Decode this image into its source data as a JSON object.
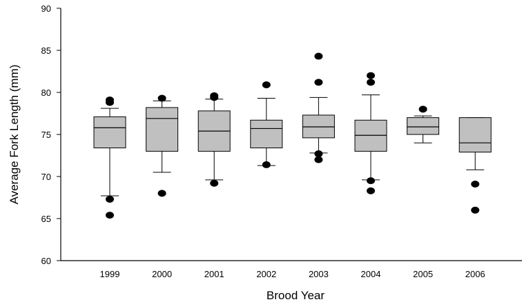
{
  "chart_data": {
    "type": "box",
    "xlabel": "Brood Year",
    "ylabel": "Average Fork Length (mm)",
    "ylim": [
      60,
      90
    ],
    "yticks": [
      60,
      65,
      70,
      75,
      80,
      85,
      90
    ],
    "grid": false,
    "colors": {
      "box_fill": "#c0c0c0",
      "line": "#000000",
      "outlier": "#000000"
    },
    "categories": [
      "1999",
      "2000",
      "2001",
      "2002",
      "2003",
      "2004",
      "2005",
      "2006"
    ],
    "boxes": [
      {
        "category": "1999",
        "whisker_low": 67.7,
        "q1": 73.4,
        "median": 75.8,
        "q3": 77.1,
        "whisker_high": 78.1,
        "outliers": [
          65.4,
          67.3,
          78.8,
          79.1
        ]
      },
      {
        "category": "2000",
        "whisker_low": 70.5,
        "q1": 73.0,
        "median": 76.9,
        "q3": 78.2,
        "whisker_high": 79.0,
        "outliers": [
          68.0,
          79.3
        ]
      },
      {
        "category": "2001",
        "whisker_low": 69.6,
        "q1": 73.0,
        "median": 75.4,
        "q3": 77.8,
        "whisker_high": 79.2,
        "outliers": [
          69.2,
          79.4,
          79.6
        ]
      },
      {
        "category": "2002",
        "whisker_low": 71.3,
        "q1": 73.4,
        "median": 75.7,
        "q3": 76.7,
        "whisker_high": 79.3,
        "outliers": [
          71.4,
          80.9
        ]
      },
      {
        "category": "2003",
        "whisker_low": 72.8,
        "q1": 74.6,
        "median": 75.9,
        "q3": 77.3,
        "whisker_high": 79.4,
        "outliers": [
          72.0,
          72.7,
          81.2,
          84.3
        ]
      },
      {
        "category": "2004",
        "whisker_low": 69.6,
        "q1": 73.0,
        "median": 74.9,
        "q3": 76.7,
        "whisker_high": 79.7,
        "outliers": [
          68.3,
          69.5,
          81.2,
          82.0
        ]
      },
      {
        "category": "2005",
        "whisker_low": 74.0,
        "q1": 75.0,
        "median": 75.9,
        "q3": 77.0,
        "whisker_high": 77.2,
        "outliers": [
          78.0
        ]
      },
      {
        "category": "2006",
        "whisker_low": 70.8,
        "q1": 72.9,
        "median": 74.0,
        "q3": 77.0,
        "whisker_high": 77.0,
        "outliers": [
          66.0,
          69.1
        ]
      }
    ]
  }
}
